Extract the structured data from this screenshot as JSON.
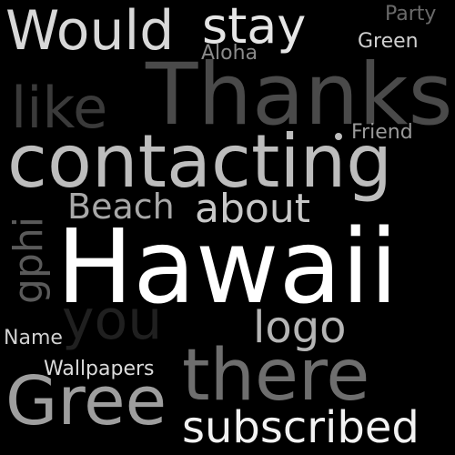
{
  "words": [
    {
      "key": "would",
      "text": "Would",
      "color": "#d8d8d8"
    },
    {
      "key": "stay",
      "text": "stay",
      "color": "#e6e6e6"
    },
    {
      "key": "party",
      "text": "Party",
      "color": "#6a6a6a"
    },
    {
      "key": "green",
      "text": "Green",
      "color": "#cfcfcf"
    },
    {
      "key": "aloha",
      "text": "Aloha",
      "color": "#8a8a8a"
    },
    {
      "key": "thanks",
      "text": "Thanks",
      "color": "#4a4a4a"
    },
    {
      "key": "like",
      "text": "like",
      "color": "#3a3a3a"
    },
    {
      "key": "friend",
      "text": "Friend",
      "color": "#9a9a9a"
    },
    {
      "key": "contacting",
      "text": "contacting",
      "color": "#bdbdbd"
    },
    {
      "key": "beach",
      "text": "Beach",
      "color": "#a8a8a8"
    },
    {
      "key": "about",
      "text": "about",
      "color": "#c8c8c8"
    },
    {
      "key": "hawaii",
      "text": "Hawaii",
      "color": "#ffffff"
    },
    {
      "key": "gphi",
      "text": "gphi",
      "color": "#5a5a5a"
    },
    {
      "key": "you",
      "text": "you",
      "color": "#202020"
    },
    {
      "key": "logo",
      "text": "logo",
      "color": "#b5b5b5"
    },
    {
      "key": "name",
      "text": "Name",
      "color": "#d0d0d0"
    },
    {
      "key": "wallpapers",
      "text": "Wallpapers",
      "color": "#dcdcdc"
    },
    {
      "key": "there",
      "text": "there",
      "color": "#6e6e6e"
    },
    {
      "key": "gree",
      "text": "Gree",
      "color": "#9e9e9e"
    },
    {
      "key": "subscribed",
      "text": "subscribed",
      "color": "#f2f2f2"
    }
  ],
  "colors": {
    "background": "#000000",
    "dot": "#bdbdbd"
  }
}
